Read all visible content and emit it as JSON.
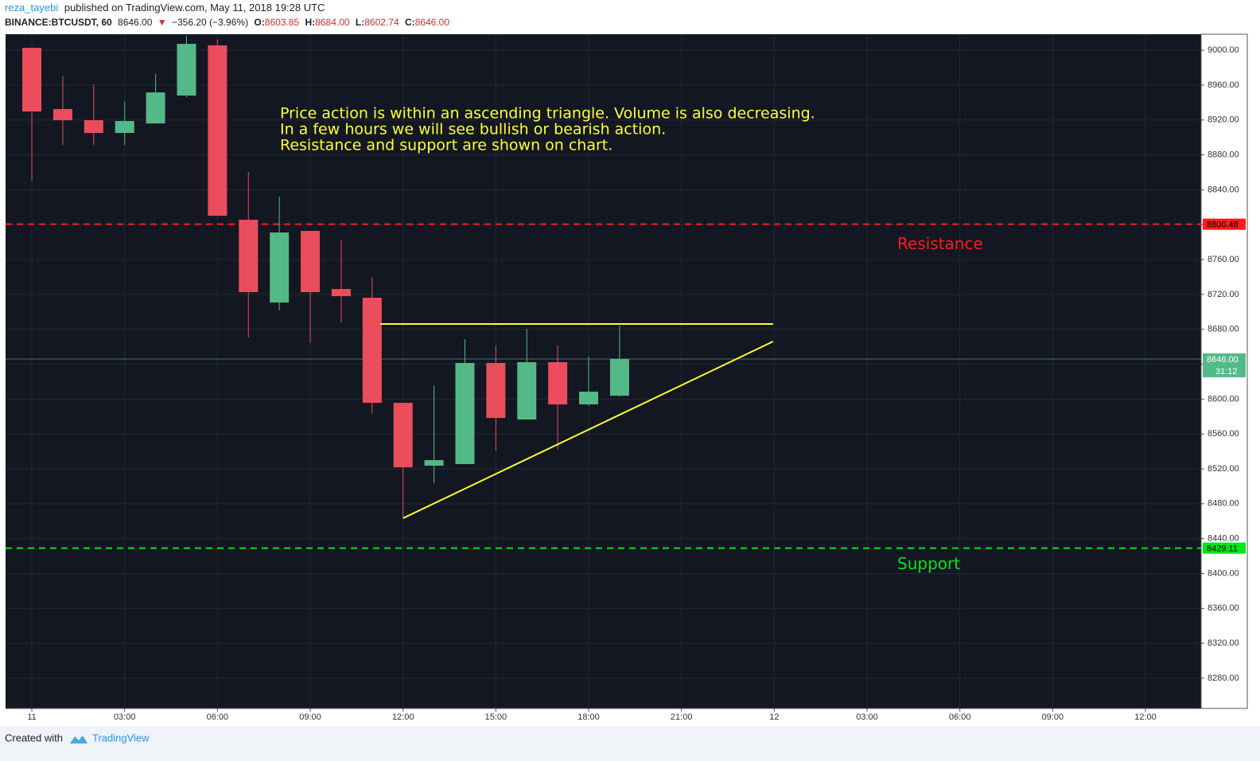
{
  "header": {
    "author": "reza_tayebi",
    "published": "published on TradingView.com, May 11, 2018 19:28 UTC",
    "symbol": "BINANCE:BTCUSDT, 60",
    "last": "8646.00",
    "arrow": "▼",
    "change": "−356.20 (−3.96%)",
    "o_label": "O:",
    "o": "8603.85",
    "h_label": "H:",
    "h": "8684.00",
    "l_label": "L:",
    "l": "8602.74",
    "c_label": "C:",
    "c": "8646.00"
  },
  "chart_data": {
    "type": "candlestick",
    "x": [
      0,
      1,
      2,
      3,
      4,
      5,
      6,
      7,
      8,
      9,
      10,
      11,
      12,
      13,
      14,
      15,
      16,
      17,
      18,
      19
    ],
    "open": [
      9002.7,
      8932.5,
      8919.7,
      8905.1,
      8916.0,
      8948.0,
      9005.5,
      8805.6,
      8710.7,
      8792.8,
      8726.2,
      8716.2,
      8595.7,
      8523.6,
      8525.5,
      8641.4,
      8576.6,
      8642.3,
      8593.9,
      8603.85
    ],
    "high": [
      9003.0,
      8970.8,
      8960.8,
      8940.7,
      8972.6,
      9016.4,
      9011.9,
      8860.4,
      8832.1,
      8792.8,
      8781.9,
      8739.9,
      8595.7,
      8615.8,
      8668.7,
      8661.5,
      8680.6,
      8661.5,
      8648.7,
      8684.0
    ],
    "low": [
      8850.3,
      8891.4,
      8891.4,
      8891.4,
      8916.0,
      8946.2,
      8810.0,
      8670.6,
      8701.6,
      8664.2,
      8687.9,
      8583.9,
      8463.4,
      8503.6,
      8525.5,
      8541.0,
      8576.6,
      8541.9,
      8592.0,
      8602.74
    ],
    "close": [
      8929.7,
      8919.7,
      8905.1,
      8918.8,
      8951.6,
      9007.3,
      8810.2,
      8722.6,
      8791.0,
      8722.6,
      8718.0,
      8595.7,
      8521.8,
      8530.0,
      8641.4,
      8578.4,
      8642.3,
      8593.9,
      8608.5,
      8646.0
    ],
    "up_color": "#53b987",
    "down_color": "#eb4d5c",
    "xlim": [
      -0.85,
      37.8
    ],
    "xticks": [
      {
        "value": 0,
        "label": "11"
      },
      {
        "value": 3,
        "label": "03:00"
      },
      {
        "value": 6,
        "label": "06:00"
      },
      {
        "value": 9,
        "label": "09:00"
      },
      {
        "value": 12,
        "label": "12:00"
      },
      {
        "value": 15,
        "label": "15:00"
      },
      {
        "value": 18,
        "label": "18:00"
      },
      {
        "value": 21,
        "label": "21:00"
      },
      {
        "value": 24,
        "label": "12"
      },
      {
        "value": 27,
        "label": "03:00"
      },
      {
        "value": 30,
        "label": "06:00"
      },
      {
        "value": 33,
        "label": "09:00"
      },
      {
        "value": 36,
        "label": "12:00"
      }
    ],
    "ylim": [
      8245.3,
      9018.3
    ],
    "yticks": [
      {
        "value": 8280,
        "label": "8280.00"
      },
      {
        "value": 8320,
        "label": "8320.00"
      },
      {
        "value": 8360,
        "label": "8360.00"
      },
      {
        "value": 8400,
        "label": "8400.00"
      },
      {
        "value": 8440,
        "label": "8440.00"
      },
      {
        "value": 8480,
        "label": "8480.00"
      },
      {
        "value": 8520,
        "label": "8520.00"
      },
      {
        "value": 8560,
        "label": "8560.00"
      },
      {
        "value": 8600,
        "label": "8600.00"
      },
      {
        "value": 8640,
        "label": "8640.00"
      },
      {
        "value": 8680,
        "label": "8680.00"
      },
      {
        "value": 8720,
        "label": "8720.00"
      },
      {
        "value": 8760,
        "label": "8760.00"
      },
      {
        "value": 8800,
        "label": "8800.00"
      },
      {
        "value": 8840,
        "label": "8840.00"
      },
      {
        "value": 8880,
        "label": "8880.00"
      },
      {
        "value": 8920,
        "label": "8920.00"
      },
      {
        "value": 8960,
        "label": "8960.00"
      },
      {
        "value": 9000,
        "label": "9000.00"
      }
    ],
    "grid": true,
    "levels": [
      {
        "value": 8800.48,
        "color": "#ff1a1a",
        "name": "Resistance"
      },
      {
        "value": 8429.11,
        "color": "#00e61a",
        "name": "Support"
      }
    ],
    "current": {
      "value": 8646,
      "label": "8646.00",
      "countdown": "31:12",
      "color": "#53b987"
    },
    "trendlines": [
      {
        "x1": 11.26,
        "y1": 8686.1,
        "x2": 23.96,
        "y2": 8686.1,
        "color": "#ffff33"
      },
      {
        "x1": 12.0,
        "y1": 8463.4,
        "x2": 23.96,
        "y2": 8666.0,
        "color": "#ffff33"
      }
    ],
    "annotations": [
      "Price action is within an ascending triangle. Volume is also decreasing.",
      "In a few hours we will see bullish or bearish action.",
      "Resistance and support are shown on chart."
    ]
  },
  "footer": {
    "created": "Created with",
    "brand": "TradingView"
  }
}
